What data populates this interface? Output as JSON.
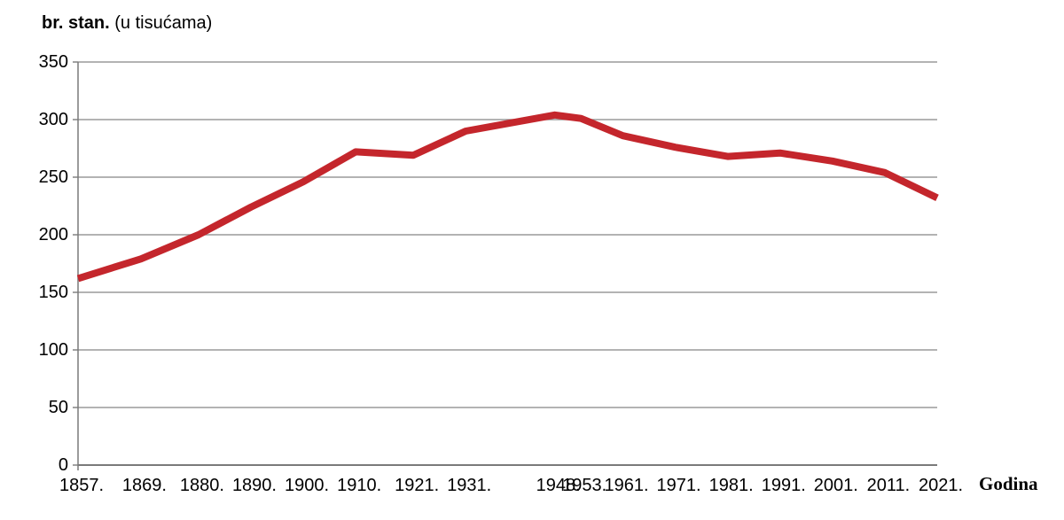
{
  "title": {
    "bold_part": "br. stan.",
    "normal_part": " (u tisućama)"
  },
  "x_axis_title": "Godina",
  "chart_data": {
    "type": "line",
    "title": "br. stan. (u tisućama)",
    "xlabel": "Godina",
    "ylabel": "br. stan. (u tisućama)",
    "categories": [
      "1857.",
      "1869.",
      "1880.",
      "1890.",
      "1900.",
      "1910.",
      "1921.",
      "1931.",
      "1948.",
      "1953.",
      "1961.",
      "1971.",
      "1981.",
      "1991.",
      "2001.",
      "2011.",
      "2021."
    ],
    "x_years": [
      1857,
      1869,
      1880,
      1890,
      1900,
      1910,
      1921,
      1931,
      1948,
      1953,
      1961,
      1971,
      1981,
      1991,
      2001,
      2011,
      2021
    ],
    "values": [
      162,
      179,
      200,
      224,
      246,
      272,
      269,
      290,
      304,
      301,
      286,
      276,
      268,
      271,
      264,
      254,
      232
    ],
    "ylim": [
      0,
      350
    ],
    "y_ticks": [
      0,
      50,
      100,
      150,
      200,
      250,
      300,
      350
    ],
    "xlim_years": [
      1857,
      2021
    ],
    "grid": "horizontal",
    "legend": "none",
    "line_color": "#c4262c",
    "grid_color": "#9a9a9a",
    "axis_color": "#7a7a7a",
    "text_color": "#000000"
  }
}
